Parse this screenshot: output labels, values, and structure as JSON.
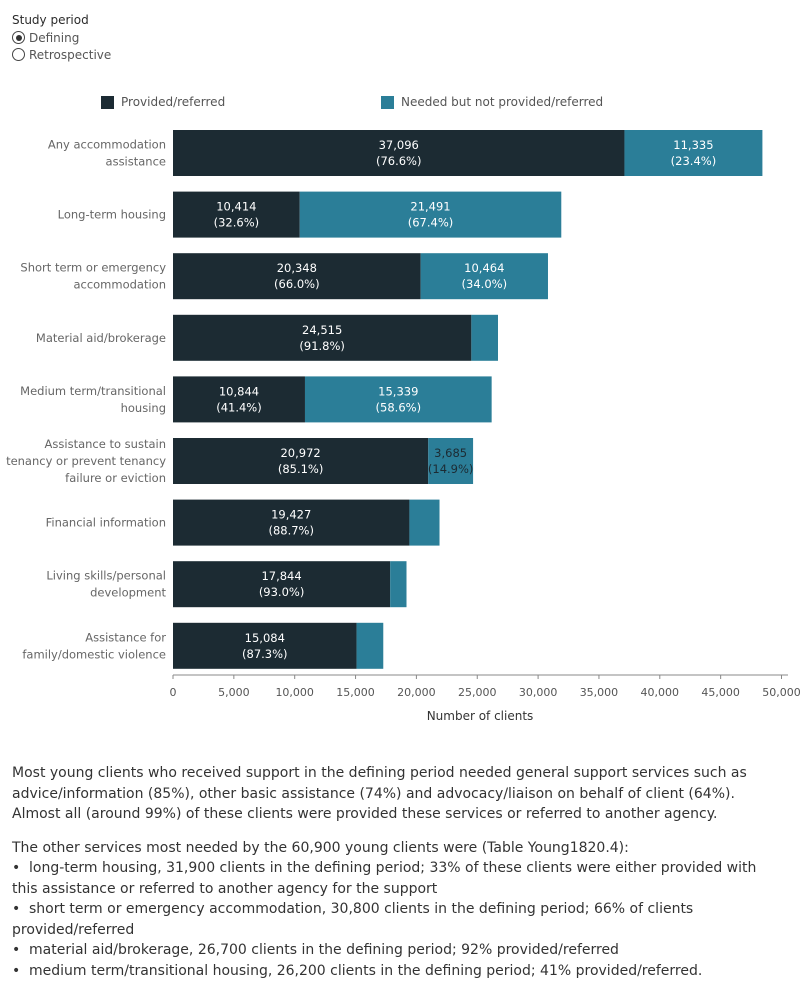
{
  "filter": {
    "title": "Study period",
    "options": [
      {
        "label": "Defining",
        "selected": true
      },
      {
        "label": "Retrospective",
        "selected": false
      }
    ]
  },
  "legend": {
    "provided": {
      "label": "Provided/referred",
      "color": "#1c2b33"
    },
    "needed": {
      "label": "Needed but not provided/referred",
      "color": "#2b7e98"
    }
  },
  "chart_data": {
    "type": "bar",
    "orientation": "horizontal",
    "stacked": true,
    "xlabel": "Number of clients",
    "xlim": [
      0,
      51000
    ],
    "xticks": [
      0,
      5000,
      10000,
      15000,
      20000,
      25000,
      30000,
      35000,
      40000,
      45000,
      50000
    ],
    "xtick_labels": [
      "0",
      "5,000",
      "10,000",
      "15,000",
      "20,000",
      "25,000",
      "30,000",
      "35,000",
      "40,000",
      "45,000",
      "50,000"
    ],
    "legend_position": "top",
    "categories": [
      {
        "lines": [
          "Any accommodation",
          "assistance"
        ]
      },
      {
        "lines": [
          "Long-term housing"
        ]
      },
      {
        "lines": [
          "Short term or emergency",
          "accommodation"
        ]
      },
      {
        "lines": [
          "Material aid/brokerage"
        ]
      },
      {
        "lines": [
          "Medium term/transitional",
          "housing"
        ]
      },
      {
        "lines": [
          "Assistance to sustain",
          "tenancy or prevent tenancy",
          "failure or eviction"
        ]
      },
      {
        "lines": [
          "Financial information"
        ]
      },
      {
        "lines": [
          "Living skills/personal",
          "development"
        ]
      },
      {
        "lines": [
          "Assistance for",
          "family/domestic violence"
        ]
      }
    ],
    "series": [
      {
        "name": "Provided/referred",
        "color": "#1c2b33",
        "values": [
          37096,
          10414,
          20348,
          24515,
          10844,
          20972,
          19427,
          17844,
          15084
        ],
        "labels": [
          [
            "37,096",
            "(76.6%)"
          ],
          [
            "10,414",
            "(32.6%)"
          ],
          [
            "20,348",
            "(66.0%)"
          ],
          [
            "24,515",
            "(91.8%)"
          ],
          [
            "10,844",
            "(41.4%)"
          ],
          [
            "20,972",
            "(85.1%)"
          ],
          [
            "19,427",
            "(88.7%)"
          ],
          [
            "17,844",
            "(93.0%)"
          ],
          [
            "15,084",
            "(87.3%)"
          ]
        ]
      },
      {
        "name": "Needed but not provided/referred",
        "color": "#2b7e98",
        "values": [
          11335,
          21491,
          10464,
          2190,
          15339,
          3685,
          2473,
          1343,
          2194
        ],
        "labels": [
          [
            "11,335",
            "(23.4%)"
          ],
          [
            "21,491",
            "(67.4%)"
          ],
          [
            "10,464",
            "(34.0%)"
          ],
          null,
          [
            "15,339",
            "(58.6%)"
          ],
          [
            "3,685",
            "(14.9%)"
          ],
          null,
          null,
          null
        ]
      }
    ]
  },
  "commentary": {
    "paragraph1": "Most young clients who received support in the defining period needed general support services such as advice/information (85%), other basic assistance (74%) and advocacy/liaison on behalf of client (64%). Almost all (around 99%) of these clients were provided these services or referred to another agency.",
    "paragraph2": "The other services most needed by the 60,900 young clients were (Table Young1820.4):",
    "bullet_char": "•",
    "bullets": [
      "long-term housing, 31,900 clients in the defining period; 33% of these clients were either provided with this assistance or referred to another agency for the support",
      "short term or emergency accommodation, 30,800 clients in the defining period; 66% of clients provided/referred",
      "material aid/brokerage, 26,700 clients in the defining period; 92% provided/referred",
      "medium term/transitional housing, 26,200 clients in the defining period; 41% provided/referred."
    ]
  }
}
